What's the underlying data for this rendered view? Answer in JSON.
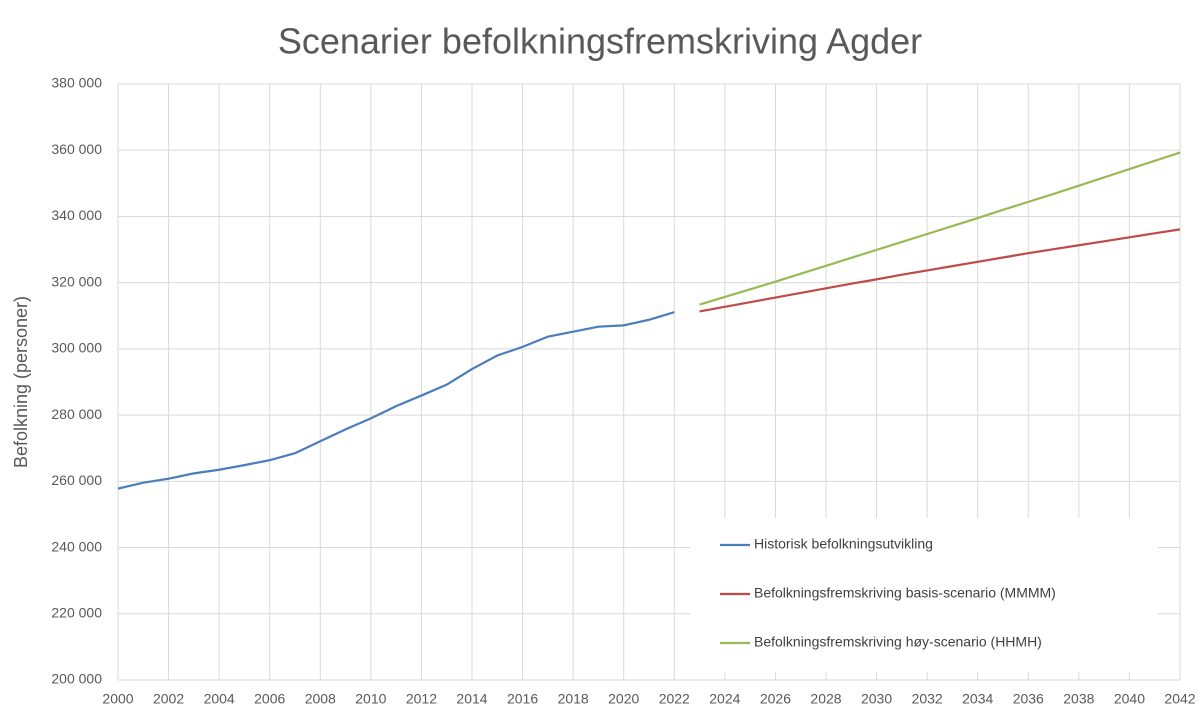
{
  "chart_data": {
    "type": "line",
    "title": "Scenarier befolkningsfremskriving Agder",
    "y_label": "Befolkning (personer)",
    "x": [
      2000,
      2001,
      2002,
      2003,
      2004,
      2005,
      2006,
      2007,
      2008,
      2009,
      2010,
      2011,
      2012,
      2013,
      2014,
      2015,
      2016,
      2017,
      2018,
      2019,
      2020,
      2021,
      2022,
      2023,
      2024,
      2025,
      2026,
      2027,
      2028,
      2029,
      2030,
      2031,
      2032,
      2033,
      2034,
      2035,
      2036,
      2037,
      2038,
      2039,
      2040,
      2041,
      2042
    ],
    "series": [
      {
        "name": "Historisk befolkningsutvikling",
        "color": "#4a7ebb",
        "values": [
          257800,
          259600,
          260800,
          262400,
          263500,
          264900,
          266400,
          268500,
          272100,
          275700,
          279000,
          282700,
          285900,
          289200,
          293900,
          298000,
          300600,
          303700,
          305200,
          306700,
          307100,
          308800,
          311100,
          null,
          null,
          null,
          null,
          null,
          null,
          null,
          null,
          null,
          null,
          null,
          null,
          null,
          null,
          null,
          null,
          null,
          null,
          null,
          null
        ]
      },
      {
        "name": "Befolkningsfremskriving basis-scenario (MMMM)",
        "color": "#be4b48",
        "values": [
          null,
          null,
          null,
          null,
          null,
          null,
          null,
          null,
          null,
          null,
          null,
          null,
          null,
          null,
          null,
          null,
          null,
          null,
          null,
          null,
          null,
          null,
          null,
          311300,
          312700,
          314100,
          315500,
          316900,
          318300,
          319700,
          321000,
          322400,
          323700,
          325000,
          326300,
          327600,
          328900,
          330100,
          331300,
          332500,
          333700,
          334900,
          336100
        ]
      },
      {
        "name": "Befolkningsfremskriving høy-scenario (HHMH)",
        "color": "#98b954",
        "values": [
          null,
          null,
          null,
          null,
          null,
          null,
          null,
          null,
          null,
          null,
          null,
          null,
          null,
          null,
          null,
          null,
          null,
          null,
          null,
          null,
          null,
          null,
          null,
          313400,
          315700,
          318000,
          320300,
          322700,
          325100,
          327500,
          329900,
          332300,
          334700,
          337100,
          339500,
          342000,
          344400,
          346800,
          349300,
          351800,
          354300,
          356800,
          359300
        ]
      }
    ],
    "xlim": [
      2000,
      2042
    ],
    "xticks": [
      2000,
      2002,
      2004,
      2006,
      2008,
      2010,
      2012,
      2014,
      2016,
      2018,
      2020,
      2022,
      2024,
      2026,
      2028,
      2030,
      2032,
      2034,
      2036,
      2038,
      2040,
      2042
    ],
    "ylim": [
      200000,
      380000
    ],
    "yticks": [
      {
        "value": 200000,
        "label": "200 000"
      },
      {
        "value": 220000,
        "label": "220 000"
      },
      {
        "value": 240000,
        "label": "240 000"
      },
      {
        "value": 260000,
        "label": "260 000"
      },
      {
        "value": 280000,
        "label": "280 000"
      },
      {
        "value": 300000,
        "label": "300 000"
      },
      {
        "value": 320000,
        "label": "320 000"
      },
      {
        "value": 340000,
        "label": "340 000"
      },
      {
        "value": 360000,
        "label": "360 000"
      },
      {
        "value": 380000,
        "label": "380 000"
      }
    ],
    "grid": true,
    "legend": "lower right"
  }
}
